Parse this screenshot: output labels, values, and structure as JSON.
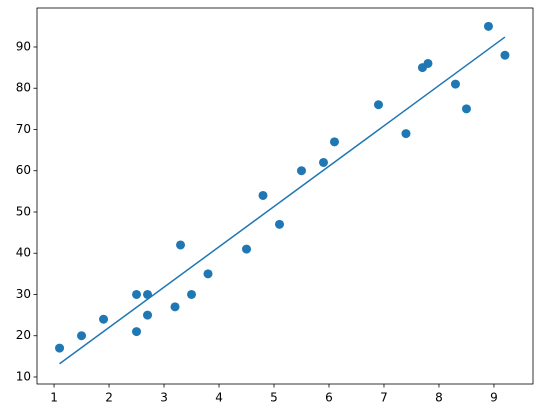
{
  "chart_data": {
    "type": "scatter",
    "series": [
      {
        "type": "scatter",
        "color": "#1f77b4",
        "x": [
          2.5,
          5.1,
          3.2,
          8.5,
          3.5,
          1.5,
          9.2,
          5.5,
          8.3,
          2.7,
          7.7,
          5.9,
          4.5,
          3.3,
          1.1,
          8.9,
          2.5,
          1.9,
          6.1,
          7.4,
          2.7,
          4.8,
          3.8,
          6.9,
          7.8
        ],
        "values": [
          21,
          47,
          27,
          75,
          30,
          20,
          88,
          60,
          81,
          25,
          85,
          62,
          41,
          42,
          17,
          95,
          30,
          24,
          67,
          69,
          30,
          54,
          35,
          76,
          86
        ]
      },
      {
        "type": "line",
        "color": "#1f77b4",
        "x": [
          1.1,
          9.2
        ],
        "values": [
          13.2,
          92.4
        ]
      }
    ],
    "xlim": [
      0.69,
      9.71
    ],
    "xticks": [
      1,
      2,
      3,
      4,
      5,
      6,
      7,
      8,
      9
    ],
    "ylim": [
      8.3,
      99.45
    ],
    "yticks": [
      10,
      20,
      30,
      40,
      50,
      60,
      70,
      80,
      90
    ]
  }
}
